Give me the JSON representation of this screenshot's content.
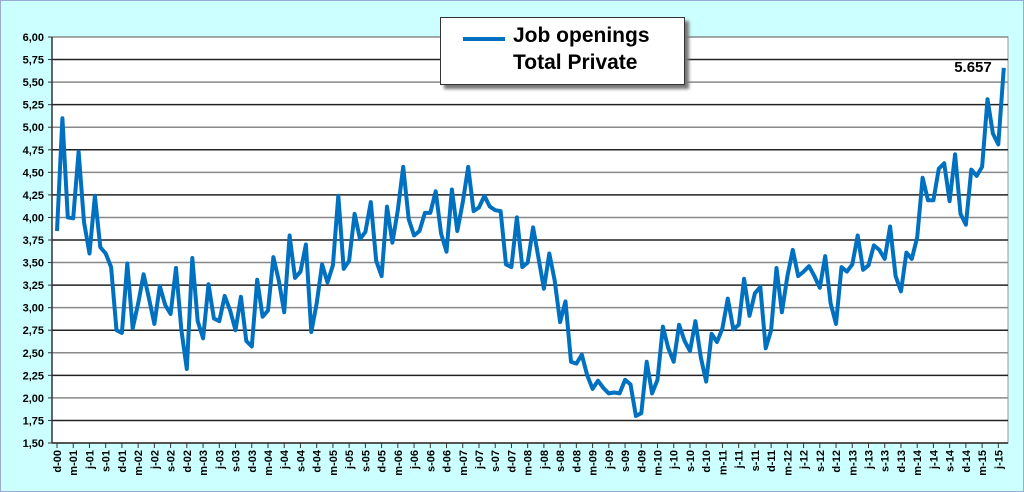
{
  "chart_data": {
    "type": "line",
    "title": "",
    "xlabel": "",
    "ylabel": "",
    "ylim": [
      1.5,
      6.0
    ],
    "y_ticks": [
      "1,50",
      "1,75",
      "2,00",
      "2,25",
      "2,50",
      "2,75",
      "3,00",
      "3,25",
      "3,50",
      "3,75",
      "4,00",
      "4,25",
      "4,50",
      "4,75",
      "5,00",
      "5,25",
      "5,50",
      "5,75",
      "6,00"
    ],
    "y_tick_values": [
      1.5,
      1.75,
      2.0,
      2.25,
      2.5,
      2.75,
      3.0,
      3.25,
      3.5,
      3.75,
      4.0,
      4.25,
      4.5,
      4.75,
      5.0,
      5.25,
      5.5,
      5.75,
      6.0
    ],
    "grid": true,
    "legend": {
      "position": "top-center",
      "line1": "Job openings",
      "line2": "Total Private"
    },
    "x_tick_labels": [
      "d-00",
      "m-01",
      "j-01",
      "s-01",
      "d-01",
      "m-02",
      "j-02",
      "s-02",
      "d-02",
      "m-03",
      "j-03",
      "s-03",
      "d-03",
      "m-04",
      "j-04",
      "s-04",
      "d-04",
      "m-05",
      "j-05",
      "s-05",
      "d-05",
      "m-06",
      "j-06",
      "s-06",
      "d-06",
      "m-07",
      "j-07",
      "s-07",
      "d-07",
      "m-08",
      "j-08",
      "s-08",
      "d-08",
      "m-09",
      "j-09",
      "s-09",
      "d-09",
      "m-10",
      "j-10",
      "s-10",
      "d-10",
      "m-11",
      "j-11",
      "s-11",
      "d-11",
      "m-12",
      "j-12",
      "s-12",
      "d-12",
      "m-13",
      "j-13",
      "s-13",
      "d-13",
      "m-14",
      "j-14",
      "s-14",
      "d-14",
      "m-15",
      "j-15"
    ],
    "x_tick_every_months": 3,
    "series": [
      {
        "name": "Job openings Total Private",
        "color": "#0070c0",
        "start": "Dec 2000",
        "values": [
          3.85,
          5.1,
          4.0,
          3.99,
          4.73,
          3.95,
          3.6,
          4.24,
          3.67,
          3.6,
          3.45,
          2.75,
          2.72,
          3.49,
          2.77,
          3.05,
          3.37,
          3.1,
          2.82,
          3.24,
          3.03,
          2.93,
          3.44,
          2.75,
          2.32,
          3.55,
          2.85,
          2.66,
          3.26,
          2.88,
          2.85,
          3.13,
          2.97,
          2.75,
          3.12,
          2.63,
          2.57,
          3.31,
          2.9,
          2.97,
          3.56,
          3.3,
          2.95,
          3.8,
          3.33,
          3.4,
          3.7,
          2.73,
          3.05,
          3.48,
          3.28,
          3.47,
          4.24,
          3.43,
          3.52,
          4.04,
          3.76,
          3.84,
          4.17,
          3.52,
          3.35,
          4.12,
          3.72,
          4.08,
          4.56,
          3.98,
          3.8,
          3.85,
          4.05,
          4.05,
          4.29,
          3.82,
          3.62,
          4.31,
          3.85,
          4.17,
          4.56,
          4.07,
          4.11,
          4.24,
          4.12,
          4.08,
          4.07,
          3.48,
          3.45,
          4.0,
          3.45,
          3.5,
          3.89,
          3.55,
          3.21,
          3.6,
          3.3,
          2.84,
          3.07,
          2.4,
          2.38,
          2.48,
          2.25,
          2.1,
          2.19,
          2.11,
          2.05,
          2.06,
          2.05,
          2.2,
          2.15,
          1.8,
          1.83,
          2.4,
          2.05,
          2.2,
          2.79,
          2.55,
          2.4,
          2.81,
          2.63,
          2.52,
          2.85,
          2.45,
          2.18,
          2.71,
          2.62,
          2.77,
          3.1,
          2.76,
          2.81,
          3.32,
          2.91,
          3.16,
          3.23,
          2.55,
          2.75,
          3.44,
          2.95,
          3.35,
          3.64,
          3.35,
          3.4,
          3.46,
          3.35,
          3.22,
          3.57,
          3.05,
          2.82,
          3.45,
          3.4,
          3.48,
          3.8,
          3.42,
          3.47,
          3.69,
          3.64,
          3.54,
          3.9,
          3.35,
          3.18,
          3.61,
          3.54,
          3.78,
          4.44,
          4.19,
          4.19,
          4.54,
          4.6,
          4.18,
          4.7,
          4.04,
          3.92,
          4.53,
          4.46,
          4.56,
          5.31,
          4.93,
          4.81,
          5.657
        ]
      }
    ],
    "annotations": [
      {
        "text": "5.657",
        "at": "last point"
      }
    ]
  }
}
